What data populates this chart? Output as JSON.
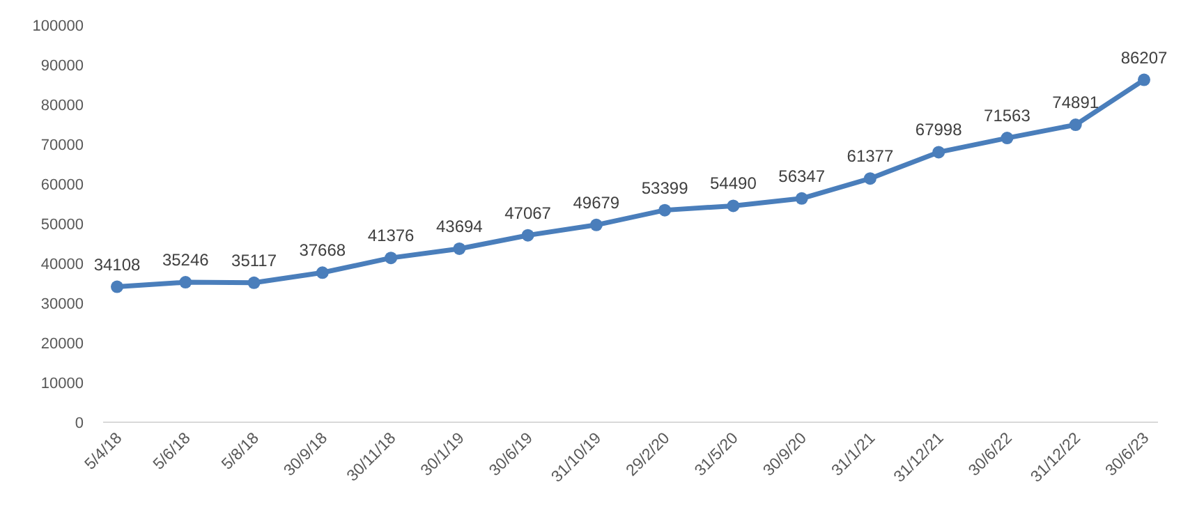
{
  "chart_data": {
    "type": "line",
    "categories": [
      "5/4/18",
      "5/6/18",
      "5/8/18",
      "30/9/18",
      "30/11/18",
      "30/1/19",
      "30/6/19",
      "31/10/19",
      "29/2/20",
      "31/5/20",
      "30/9/20",
      "31/1/21",
      "31/12/21",
      "30/6/22",
      "31/12/22",
      "30/6/23"
    ],
    "series": [
      {
        "color": "#4a7ebb",
        "values": [
          34108,
          35246,
          35117,
          37668,
          41376,
          43694,
          47067,
          49679,
          53399,
          54490,
          56347,
          61377,
          67998,
          71563,
          74891,
          86207
        ]
      }
    ],
    "ylim": [
      0,
      100000
    ],
    "yticks": [
      0,
      10000,
      20000,
      30000,
      40000,
      50000,
      60000,
      70000,
      80000,
      90000,
      100000
    ],
    "grid": false,
    "marker": "circle",
    "line_style": "solid",
    "data_labels": true
  }
}
